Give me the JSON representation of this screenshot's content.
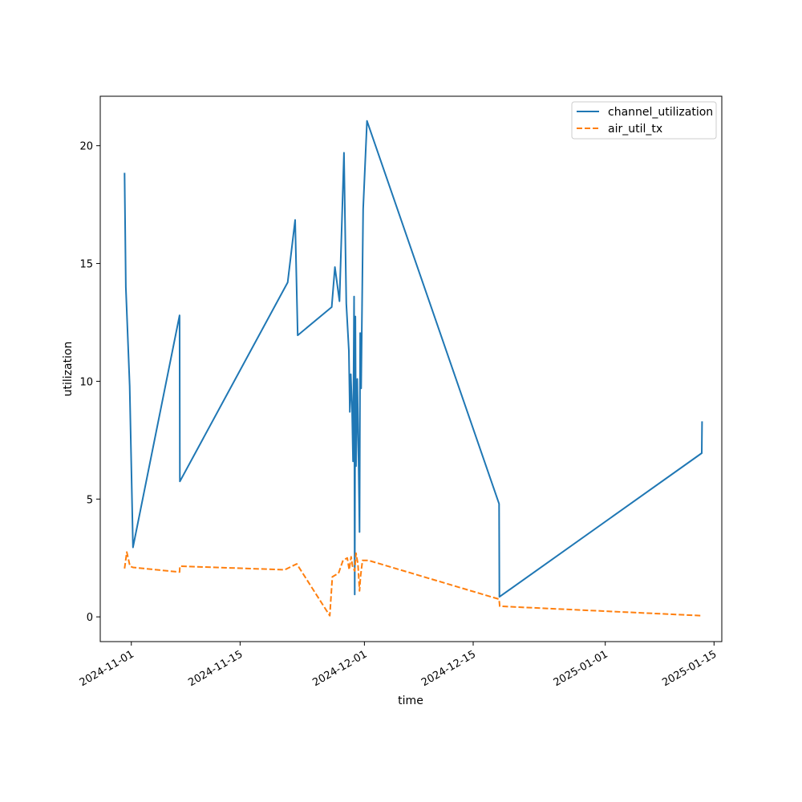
{
  "chart_data": {
    "type": "line",
    "title": "",
    "xlabel": "time",
    "ylabel": "utilization",
    "xlim": [
      "2024-10-28T00:00",
      "2025-01-16T00:00"
    ],
    "ylim": [
      -1.05,
      22.1
    ],
    "x_ticks": [
      "2024-11-01",
      "2024-11-15",
      "2024-12-01",
      "2024-12-15",
      "2025-01-01",
      "2025-01-15"
    ],
    "y_ticks": [
      0,
      5,
      10,
      15,
      20
    ],
    "grid": false,
    "legend": "upper right",
    "series": [
      {
        "name": "channel_utilization",
        "color": "#1f77b4",
        "dash": "solid",
        "points": [
          [
            "2024-10-31T03:00",
            18.85
          ],
          [
            "2024-10-31T07:00",
            14.0
          ],
          [
            "2024-10-31T19:00",
            9.8
          ],
          [
            "2024-11-01T05:00",
            2.95
          ],
          [
            "2024-11-07T05:00",
            12.8
          ],
          [
            "2024-11-07T06:00",
            5.75
          ],
          [
            "2024-11-21T03:00",
            14.2
          ],
          [
            "2024-11-22T02:00",
            16.85
          ],
          [
            "2024-11-22T10:00",
            11.95
          ],
          [
            "2024-11-26T19:00",
            13.15
          ],
          [
            "2024-11-27T05:00",
            14.85
          ],
          [
            "2024-11-27T19:00",
            13.4
          ],
          [
            "2024-11-28T09:00",
            19.7
          ],
          [
            "2024-11-28T16:00",
            13.3
          ],
          [
            "2024-11-29T00:00",
            11.3
          ],
          [
            "2024-11-29T03:00",
            8.7
          ],
          [
            "2024-11-29T06:00",
            10.3
          ],
          [
            "2024-11-29T10:00",
            8.8
          ],
          [
            "2024-11-29T13:00",
            6.6
          ],
          [
            "2024-11-29T16:00",
            13.6
          ],
          [
            "2024-11-29T18:00",
            0.95
          ],
          [
            "2024-11-29T20:00",
            12.75
          ],
          [
            "2024-11-29T22:00",
            6.4
          ],
          [
            "2024-11-30T02:00",
            10.1
          ],
          [
            "2024-11-30T06:00",
            6.6
          ],
          [
            "2024-11-30T09:00",
            3.6
          ],
          [
            "2024-11-30T11:00",
            12.05
          ],
          [
            "2024-11-30T14:00",
            9.7
          ],
          [
            "2024-11-30T20:00",
            17.3
          ],
          [
            "2024-12-01T08:00",
            21.05
          ],
          [
            "2024-12-18T08:00",
            4.8
          ],
          [
            "2024-12-18T09:00",
            0.85
          ],
          [
            "2025-01-13T10:00",
            6.95
          ],
          [
            "2025-01-13T11:00",
            8.3
          ]
        ]
      },
      {
        "name": "air_util_tx",
        "color": "#ff7f0e",
        "dash": "dashed",
        "points": [
          [
            "2024-10-31T03:00",
            2.05
          ],
          [
            "2024-10-31T10:00",
            2.75
          ],
          [
            "2024-10-31T20:00",
            2.15
          ],
          [
            "2024-11-01T05:00",
            2.1
          ],
          [
            "2024-11-07T05:00",
            1.9
          ],
          [
            "2024-11-07T06:00",
            2.15
          ],
          [
            "2024-11-20T18:00",
            2.0
          ],
          [
            "2024-11-22T07:00",
            2.25
          ],
          [
            "2024-11-26T13:00",
            0.05
          ],
          [
            "2024-11-26T21:00",
            1.7
          ],
          [
            "2024-11-27T16:00",
            1.85
          ],
          [
            "2024-11-28T06:00",
            2.4
          ],
          [
            "2024-11-28T19:00",
            2.5
          ],
          [
            "2024-11-29T01:00",
            2.0
          ],
          [
            "2024-11-29T07:00",
            2.55
          ],
          [
            "2024-11-29T12:00",
            2.1
          ],
          [
            "2024-11-29T18:00",
            1.95
          ],
          [
            "2024-11-29T22:00",
            2.7
          ],
          [
            "2024-11-30T04:00",
            2.25
          ],
          [
            "2024-11-30T09:00",
            1.1
          ],
          [
            "2024-11-30T12:00",
            1.7
          ],
          [
            "2024-11-30T18:00",
            2.4
          ],
          [
            "2024-12-01T12:00",
            2.4
          ],
          [
            "2024-12-18T08:00",
            0.75
          ],
          [
            "2024-12-18T10:00",
            0.45
          ],
          [
            "2025-01-13T10:00",
            0.05
          ]
        ]
      }
    ]
  }
}
